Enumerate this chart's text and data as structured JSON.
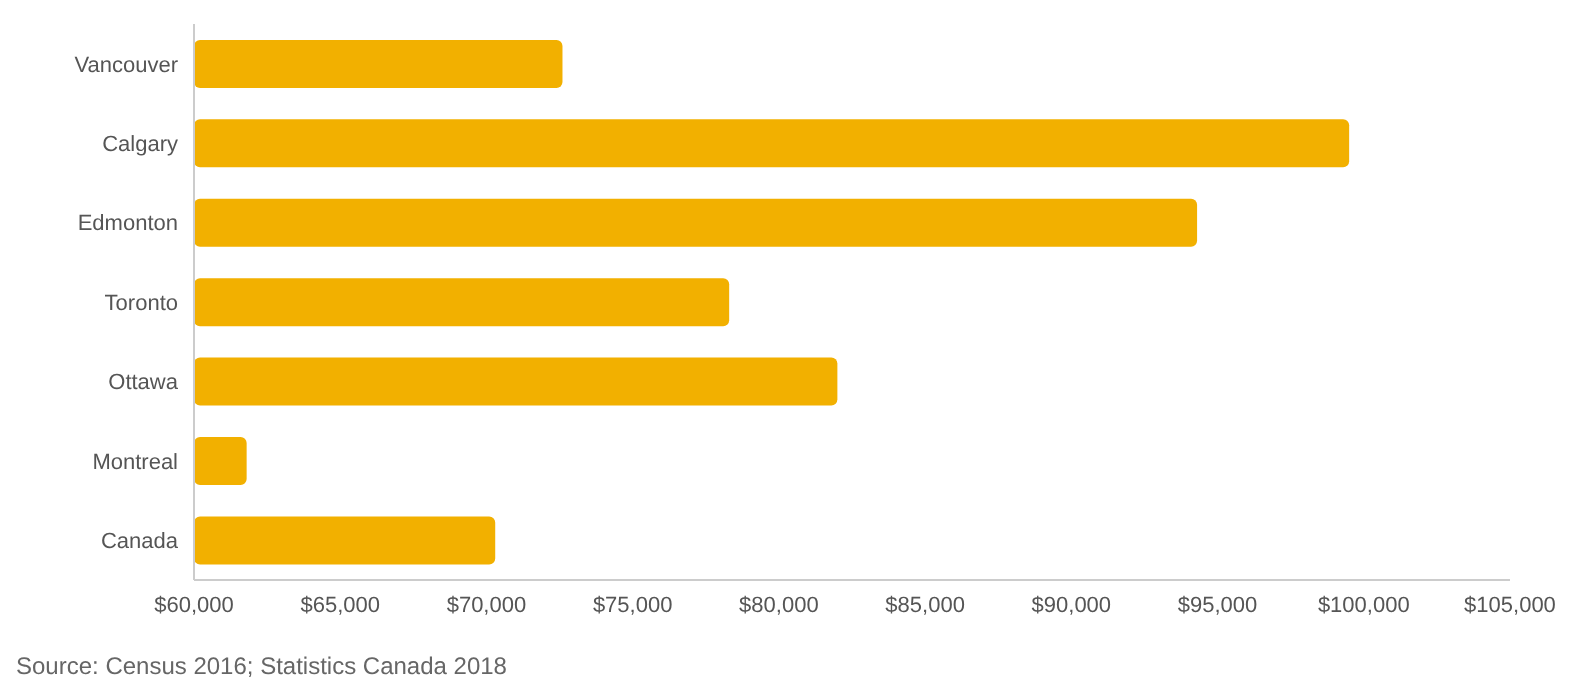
{
  "chart_data": {
    "type": "bar",
    "orientation": "horizontal",
    "categories": [
      "Vancouver",
      "Calgary",
      "Edmonton",
      "Toronto",
      "Ottawa",
      "Montreal",
      "Canada"
    ],
    "values": [
      72600,
      99500,
      94300,
      78300,
      82000,
      61800,
      70300
    ],
    "color": "#f2b000",
    "xlim": [
      60000,
      105000
    ],
    "xticks": [
      {
        "value": 60000,
        "label": "$60,000"
      },
      {
        "value": 65000,
        "label": "$65,000"
      },
      {
        "value": 70000,
        "label": "$70,000"
      },
      {
        "value": 75000,
        "label": "$75,000"
      },
      {
        "value": 80000,
        "label": "$80,000"
      },
      {
        "value": 85000,
        "label": "$85,000"
      },
      {
        "value": 90000,
        "label": "$90,000"
      },
      {
        "value": 95000,
        "label": "$95,000"
      },
      {
        "value": 100000,
        "label": "$100,000"
      },
      {
        "value": 105000,
        "label": "$105,000"
      }
    ],
    "annotations": [
      "Source: Census 2016; Statistics Canada 2018"
    ],
    "grid": false,
    "legend": false
  }
}
